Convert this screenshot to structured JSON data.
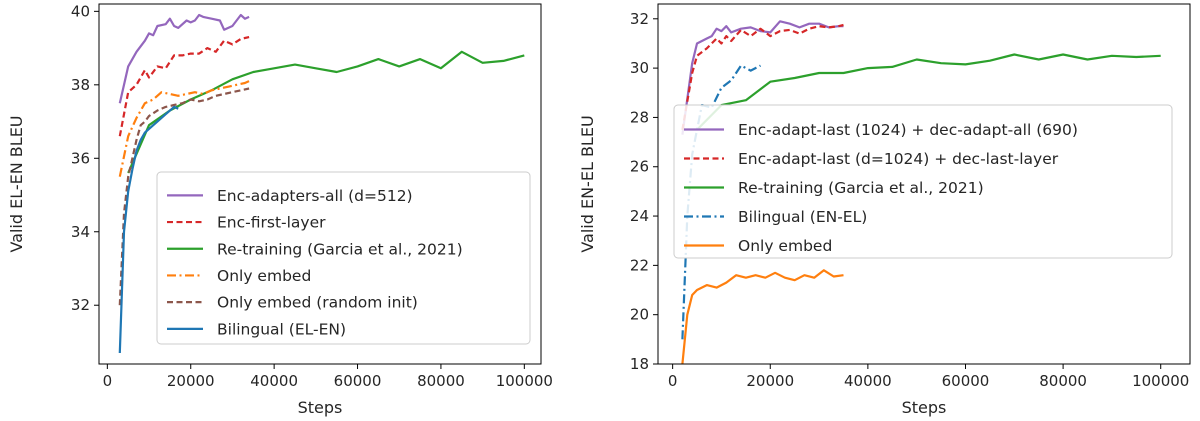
{
  "chart_data": [
    {
      "type": "line",
      "xlabel": "Steps",
      "ylabel": "Valid EL-EN BLEU",
      "xlim": [
        -2000,
        104000
      ],
      "ylim": [
        30.4,
        40.2
      ],
      "xticks": [
        0,
        20000,
        40000,
        60000,
        80000,
        100000
      ],
      "xtick_labels": [
        "0",
        "20000",
        "40000",
        "60000",
        "80000",
        "100000"
      ],
      "yticks": [
        32,
        34,
        36,
        38,
        40
      ],
      "ytick_labels": [
        "32",
        "34",
        "36",
        "38",
        "40"
      ],
      "legend_position": "lower-right",
      "grid": false,
      "series": [
        {
          "name": "Enc-adapters-all (d=512)",
          "color": "#9467bd",
          "dash": "solid",
          "x": [
            3000,
            5000,
            7000,
            9000,
            10000,
            11000,
            12000,
            14000,
            15000,
            16000,
            17000,
            19000,
            20000,
            21000,
            22000,
            23000,
            25000,
            27000,
            28000,
            30000,
            32000,
            33000,
            34000
          ],
          "y": [
            37.5,
            38.5,
            38.9,
            39.2,
            39.4,
            39.35,
            39.6,
            39.65,
            39.8,
            39.6,
            39.55,
            39.75,
            39.7,
            39.75,
            39.9,
            39.85,
            39.8,
            39.75,
            39.5,
            39.6,
            39.9,
            39.8,
            39.85
          ]
        },
        {
          "name": "Enc-first-layer",
          "color": "#d62728",
          "dash": "dashed",
          "x": [
            3000,
            5000,
            7000,
            9000,
            10000,
            12000,
            14000,
            16000,
            18000,
            20000,
            22000,
            24000,
            26000,
            28000,
            30000,
            32000,
            34000
          ],
          "y": [
            36.6,
            37.8,
            38.0,
            38.4,
            38.2,
            38.5,
            38.45,
            38.8,
            38.8,
            38.85,
            38.85,
            39.0,
            38.9,
            39.2,
            39.1,
            39.25,
            39.3
          ]
        },
        {
          "name": "Re-training (Garcia et al., 2021)",
          "color": "#2ca02c",
          "dash": "solid",
          "x": [
            5000,
            10000,
            15000,
            20000,
            25000,
            30000,
            35000,
            40000,
            45000,
            50000,
            55000,
            60000,
            65000,
            70000,
            75000,
            80000,
            85000,
            90000,
            95000,
            100000
          ],
          "y": [
            35.6,
            36.9,
            37.3,
            37.6,
            37.85,
            38.15,
            38.35,
            38.45,
            38.55,
            38.45,
            38.35,
            38.5,
            38.7,
            38.5,
            38.7,
            38.45,
            38.9,
            38.6,
            38.65,
            38.8
          ]
        },
        {
          "name": "Only embed",
          "color": "#ff7f0e",
          "dash": "dashdot",
          "x": [
            3000,
            5000,
            7000,
            9000,
            11000,
            13000,
            15000,
            17000,
            19000,
            21000,
            23000,
            25000,
            27000,
            29000,
            31000,
            33000,
            34000
          ],
          "y": [
            35.5,
            36.6,
            37.1,
            37.5,
            37.6,
            37.8,
            37.75,
            37.7,
            37.75,
            37.8,
            37.75,
            37.85,
            37.9,
            37.95,
            38.0,
            38.05,
            38.1
          ]
        },
        {
          "name": "Only embed (random init)",
          "color": "#8c564b",
          "dash": "dashed",
          "x": [
            3000,
            4000,
            5000,
            6000,
            7000,
            8000,
            9000,
            10000,
            12000,
            14000,
            16000,
            18000,
            20000,
            22000,
            24000,
            26000,
            28000,
            30000,
            32000,
            34000
          ],
          "y": [
            32.0,
            34.5,
            35.5,
            36.0,
            36.5,
            36.9,
            37.0,
            37.15,
            37.3,
            37.4,
            37.45,
            37.5,
            37.6,
            37.55,
            37.6,
            37.7,
            37.75,
            37.8,
            37.85,
            37.9
          ]
        },
        {
          "name": "Bilingual (EL-EN)",
          "color": "#1f77b4",
          "dash": "solid",
          "x": [
            3000,
            4000,
            5000,
            6000,
            7000,
            8000,
            9000,
            10000,
            12000,
            14000,
            16000,
            17000
          ],
          "y": [
            30.7,
            34.0,
            35.1,
            35.7,
            36.2,
            36.5,
            36.7,
            36.8,
            37.0,
            37.2,
            37.4,
            37.35
          ]
        }
      ]
    },
    {
      "type": "line",
      "xlabel": "Steps",
      "ylabel": "Valid EN-EL BLEU",
      "xlim": [
        -3000,
        106000
      ],
      "ylim": [
        18.0,
        32.6
      ],
      "xticks": [
        0,
        20000,
        40000,
        60000,
        80000,
        100000
      ],
      "xtick_labels": [
        "0",
        "20000",
        "40000",
        "60000",
        "80000",
        "100000"
      ],
      "yticks": [
        18,
        20,
        22,
        24,
        26,
        28,
        30,
        32
      ],
      "ytick_labels": [
        "18",
        "20",
        "22",
        "24",
        "26",
        "28",
        "30",
        "32"
      ],
      "legend_position": "center-right",
      "grid": false,
      "series": [
        {
          "name": "Enc-adapt-last (1024) + dec-adapt-all (690)",
          "color": "#9467bd",
          "dash": "solid",
          "x": [
            2000,
            4000,
            5000,
            7000,
            8000,
            9000,
            10000,
            11000,
            12000,
            14000,
            16000,
            18000,
            20000,
            22000,
            24000,
            26000,
            28000,
            30000,
            32000,
            34000,
            35000
          ],
          "y": [
            27.3,
            30.2,
            31.0,
            31.2,
            31.3,
            31.6,
            31.5,
            31.7,
            31.45,
            31.6,
            31.65,
            31.5,
            31.45,
            31.9,
            31.8,
            31.65,
            31.8,
            31.8,
            31.65,
            31.7,
            31.7
          ]
        },
        {
          "name": "Enc-adapt-last (d=1024) + dec-last-layer",
          "color": "#d62728",
          "dash": "dashed",
          "x": [
            2000,
            4000,
            5000,
            7000,
            9000,
            10000,
            11000,
            12000,
            14000,
            16000,
            18000,
            20000,
            22000,
            24000,
            26000,
            28000,
            30000,
            32000,
            34000,
            35000
          ],
          "y": [
            27.5,
            29.8,
            30.5,
            30.8,
            31.2,
            31.0,
            31.3,
            31.1,
            31.55,
            31.3,
            31.6,
            31.3,
            31.5,
            31.55,
            31.4,
            31.6,
            31.7,
            31.65,
            31.7,
            31.75
          ]
        },
        {
          "name": "Re-training (Garcia et al., 2021)",
          "color": "#2ca02c",
          "dash": "solid",
          "x": [
            5000,
            10000,
            15000,
            20000,
            25000,
            30000,
            35000,
            40000,
            45000,
            50000,
            55000,
            60000,
            65000,
            70000,
            75000,
            80000,
            85000,
            90000,
            95000,
            100000
          ],
          "y": [
            27.5,
            28.5,
            28.7,
            29.45,
            29.6,
            29.8,
            29.8,
            30.0,
            30.05,
            30.35,
            30.2,
            30.15,
            30.3,
            30.55,
            30.35,
            30.55,
            30.35,
            30.5,
            30.45,
            30.5
          ]
        },
        {
          "name": "Bilingual (EN-EL)",
          "color": "#1f77b4",
          "dash": "dashdot",
          "x": [
            2000,
            3000,
            4000,
            5000,
            6000,
            8000,
            10000,
            12000,
            14000,
            16000,
            18000
          ],
          "y": [
            19.0,
            24.0,
            26.5,
            27.5,
            28.5,
            28.4,
            29.2,
            29.5,
            30.1,
            29.9,
            30.1
          ]
        },
        {
          "name": "Only embed",
          "color": "#ff7f0e",
          "dash": "solid",
          "x": [
            2000,
            3000,
            4000,
            5000,
            7000,
            9000,
            11000,
            13000,
            15000,
            17000,
            19000,
            21000,
            23000,
            25000,
            27000,
            29000,
            31000,
            33000,
            35000
          ],
          "y": [
            18.0,
            20.0,
            20.8,
            21.0,
            21.2,
            21.1,
            21.3,
            21.6,
            21.5,
            21.6,
            21.5,
            21.7,
            21.5,
            21.4,
            21.6,
            21.5,
            21.8,
            21.55,
            21.6
          ]
        }
      ]
    }
  ]
}
